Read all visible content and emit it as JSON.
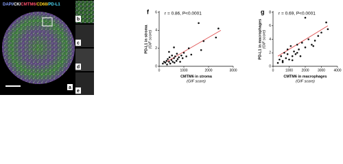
{
  "figure": {
    "stain_legend": [
      {
        "text": "DAPI/",
        "color": "#8aa2ff"
      },
      {
        "text": "CK/",
        "color": "#ffffff"
      },
      {
        "text": "CMTM6/",
        "color": "#ff4f6a"
      },
      {
        "text": "CD68/",
        "color": "#ffd21f"
      },
      {
        "text": "PD-L1",
        "color": "#4fe0ff"
      }
    ],
    "panel_labels": [
      "a",
      "b",
      "c",
      "d",
      "e"
    ]
  },
  "chart_data": [
    {
      "type": "scatter",
      "panel": "f",
      "annotation": "r = 0.86, P<0.0001",
      "x_label": [
        "CMTM6 in stroma",
        "(GIF score)"
      ],
      "y_label": [
        "PD-L1 in stroma",
        "(GIF score)"
      ],
      "x": [
        150,
        200,
        250,
        300,
        320,
        350,
        400,
        420,
        450,
        500,
        520,
        550,
        600,
        620,
        650,
        700,
        720,
        750,
        800,
        850,
        900,
        950,
        1000,
        1100,
        1200,
        1300,
        1600,
        1700,
        1800,
        2300,
        2400,
        600,
        400
      ],
      "values": [
        0.3,
        0.5,
        0.4,
        0.6,
        0.2,
        0.8,
        0.5,
        1.0,
        0.3,
        0.7,
        1.2,
        0.5,
        0.9,
        0.4,
        1.1,
        0.6,
        1.4,
        0.8,
        1.0,
        0.5,
        1.2,
        0.9,
        1.5,
        1.1,
        2.0,
        1.3,
        4.8,
        1.8,
        2.8,
        3.2,
        4.2,
        2.1,
        1.6
      ],
      "color": "#111111",
      "trendline": {
        "x": [
          300,
          2500
        ],
        "y": [
          0.5,
          4.0
        ],
        "color": "#e05050"
      },
      "xlim": [
        0,
        3000
      ],
      "xticks": [
        0,
        1000,
        2000,
        3000
      ],
      "ylim": [
        0,
        6
      ],
      "yticks": [
        0,
        2,
        4,
        6
      ]
    },
    {
      "type": "scatter",
      "panel": "g",
      "annotation": "r = 0.69, P<0.0001",
      "x_label": [
        "CMTM6 in macrophages",
        "(GIF score)"
      ],
      "y_label": [
        "PD-L1 in macrophages",
        "(GIF score)"
      ],
      "x": [
        300,
        400,
        500,
        600,
        700,
        800,
        900,
        1000,
        1100,
        1200,
        1300,
        1400,
        1500,
        1600,
        1700,
        1800,
        2000,
        2200,
        2400,
        2600,
        2800,
        3000,
        3300,
        3400,
        600,
        900,
        1200,
        1500,
        2000,
        2500
      ],
      "values": [
        0.5,
        1.0,
        1.5,
        0.8,
        2.0,
        1.2,
        2.5,
        1.0,
        3.0,
        1.5,
        2.2,
        1.8,
        3.2,
        2.5,
        1.5,
        3.5,
        2.8,
        4.0,
        3.2,
        3.8,
        4.5,
        5.0,
        6.5,
        5.5,
        0.6,
        1.8,
        0.9,
        2.0,
        7.2,
        3.0
      ],
      "color": "#111111",
      "trendline": {
        "x": [
          300,
          3400
        ],
        "y": [
          1.5,
          6.0
        ],
        "color": "#e05050"
      },
      "xlim": [
        0,
        4000
      ],
      "xticks": [
        0,
        1000,
        2000,
        3000,
        4000
      ],
      "ylim": [
        0,
        8
      ],
      "yticks": [
        0,
        2,
        4,
        6,
        8
      ]
    }
  ]
}
